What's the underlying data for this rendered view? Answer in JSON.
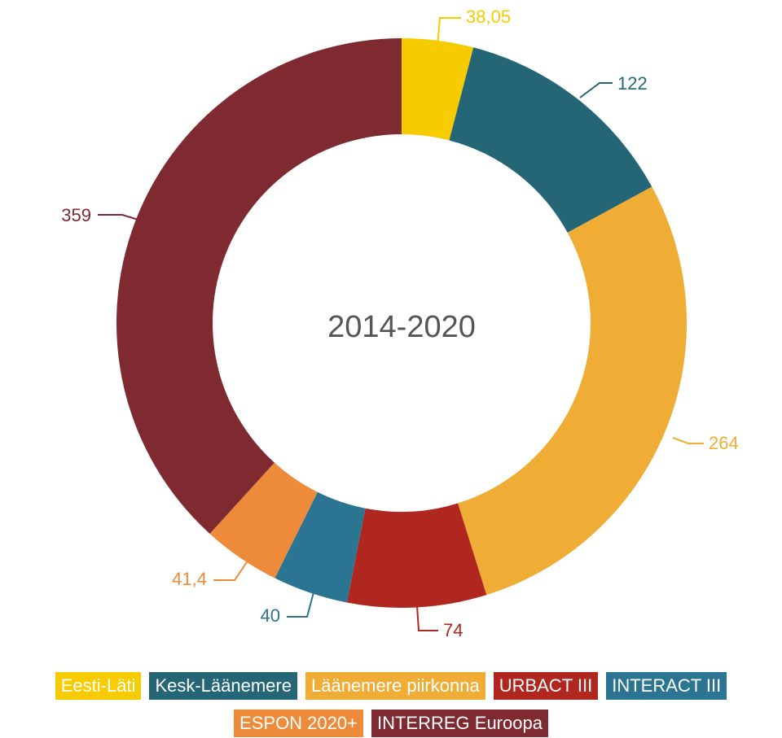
{
  "chart_data": {
    "type": "pie",
    "donut": true,
    "center_label": "2014-2020",
    "slices": [
      {
        "name": "Eesti-Läti",
        "value": 38.05,
        "label": "38,05",
        "color": "#f6cc00"
      },
      {
        "name": "Kesk-Läänemere",
        "value": 122,
        "label": "122",
        "color": "#246676"
      },
      {
        "name": "Läänemere piirkonna",
        "value": 264,
        "label": "264",
        "color": "#efad35"
      },
      {
        "name": "URBACT III",
        "value": 74,
        "label": "74",
        "color": "#b0271f"
      },
      {
        "name": "INTERACT III",
        "value": 40,
        "label": "40",
        "color": "#2b7592"
      },
      {
        "name": "ESPON 2020+",
        "value": 41.4,
        "label": "41,4",
        "color": "#ee8b3a"
      },
      {
        "name": "INTERREG Euroopa",
        "value": 359,
        "label": "359",
        "color": "#7e2a30"
      }
    ],
    "legend": {
      "placement": "bottom",
      "row1": [
        0,
        1,
        2,
        3,
        4
      ],
      "row2": [
        5,
        6
      ]
    }
  }
}
